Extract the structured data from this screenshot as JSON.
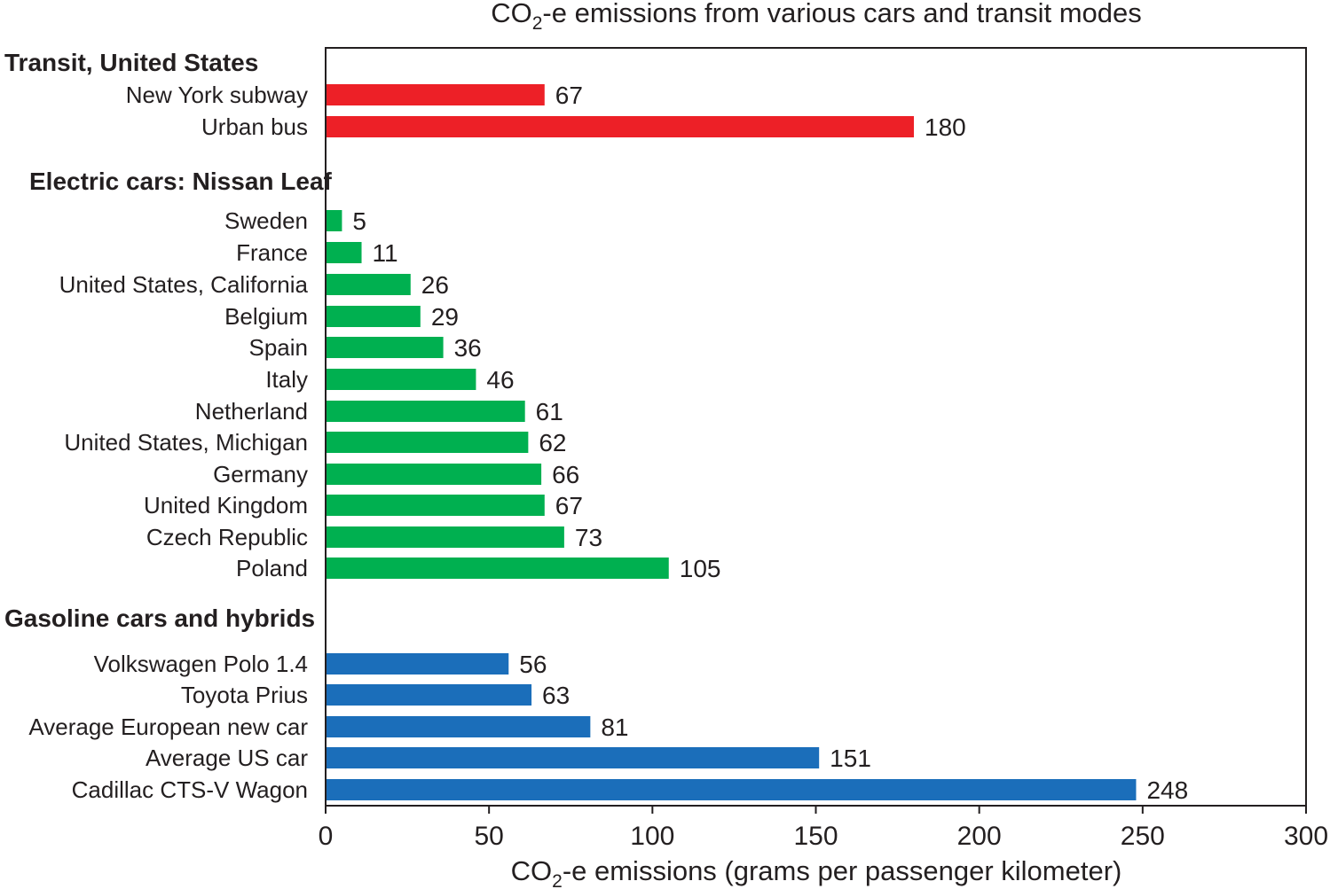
{
  "chart_data": {
    "type": "bar",
    "orientation": "horizontal",
    "title": {
      "prefix": "CO",
      "sub": "2",
      "rest": "-e emissions from various cars and transit modes"
    },
    "xlabel": {
      "prefix": "CO",
      "sub": "2",
      "rest": "-e emissions (grams per passenger kilometer)"
    },
    "xlim": [
      0,
      300
    ],
    "xticks": [
      0,
      50,
      100,
      150,
      200,
      250,
      300
    ],
    "grid": false,
    "groups": [
      {
        "name": "Transit, United States",
        "color": "#ED2027",
        "items": [
          {
            "label": "New York subway",
            "value": 67
          },
          {
            "label": "Urban bus",
            "value": 180
          }
        ]
      },
      {
        "name": "Electric cars: Nissan Leaf",
        "color": "#00B050",
        "items": [
          {
            "label": "Sweden",
            "value": 5
          },
          {
            "label": "France",
            "value": 11
          },
          {
            "label": "United States, California",
            "value": 26
          },
          {
            "label": "Belgium",
            "value": 29
          },
          {
            "label": "Spain",
            "value": 36
          },
          {
            "label": "Italy",
            "value": 46
          },
          {
            "label": "Netherland",
            "value": 61
          },
          {
            "label": "United States, Michigan",
            "value": 62
          },
          {
            "label": "Germany",
            "value": 66
          },
          {
            "label": "United Kingdom",
            "value": 67
          },
          {
            "label": "Czech Republic",
            "value": 73
          },
          {
            "label": "Poland",
            "value": 105
          }
        ]
      },
      {
        "name": "Gasoline cars and hybrids",
        "color": "#1B6EBA",
        "items": [
          {
            "label": "Volkswagen Polo 1.4",
            "value": 56
          },
          {
            "label": "Toyota Prius",
            "value": 63
          },
          {
            "label": "Average European new car",
            "value": 81
          },
          {
            "label": "Average US car",
            "value": 151
          },
          {
            "label": "Cadillac CTS-V Wagon",
            "value": 248
          }
        ]
      }
    ]
  }
}
